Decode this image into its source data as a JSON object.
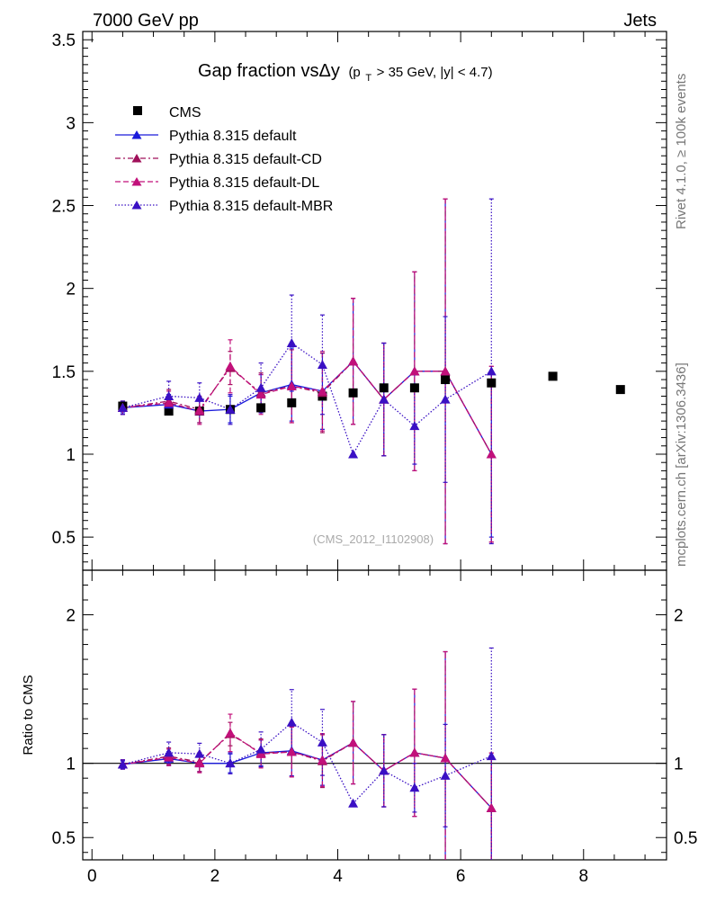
{
  "header": {
    "energy_label": "7000 GeV pp",
    "process_label": "Jets",
    "side_rivet": "Rivet 4.1.0, ≥ 100k events",
    "side_mcplots": "mcplots.cern.ch [arXiv:1306.3436]",
    "analysis_id": "(CMS_2012_I1102908)"
  },
  "chart_data": {
    "type": "scatter",
    "title": "Gap fraction vsΔy",
    "title_cuts": "(p_T > 35 GeV, |y| < 4.7)",
    "title_cuts_pre": "(p",
    "title_cuts_sub": "T",
    "title_cuts_post": " > 35 GeV, |y| < 4.7)",
    "xlabel": "",
    "ylabel": "",
    "ratio_ylabel": "Ratio to CMS",
    "xlim": [
      -0.15,
      9.35
    ],
    "ylim": [
      0.3,
      3.55
    ],
    "ratio_ylim": [
      0.35,
      2.3
    ],
    "x_ticks": [
      0,
      2,
      4,
      6,
      8
    ],
    "y_ticks": [
      0.5,
      1,
      1.5,
      2,
      2.5,
      3,
      3.5
    ],
    "y_tick_labels": [
      "0.5",
      "1",
      "1.5",
      "2",
      "2.5",
      "3",
      "3.5"
    ],
    "ratio_ticks": [
      0.5,
      1,
      2
    ],
    "ratio_tick_labels": [
      "0.5",
      "1",
      "2"
    ],
    "data": {
      "name": "CMS",
      "color": "#000000",
      "x": [
        0.5,
        1.25,
        1.75,
        2.25,
        2.75,
        3.25,
        3.75,
        4.25,
        4.75,
        5.25,
        5.75,
        6.5,
        7.5,
        8.6
      ],
      "y": [
        1.29,
        1.26,
        1.26,
        1.27,
        1.28,
        1.31,
        1.35,
        1.37,
        1.4,
        1.4,
        1.45,
        1.43,
        1.47,
        1.39
      ]
    },
    "series": [
      {
        "name": "Pythia 8.315 default",
        "color": "#1a1adb",
        "dash": "",
        "x": [
          0.5,
          1.25,
          1.75,
          2.25,
          2.75,
          3.25,
          3.75,
          4.25,
          4.75,
          5.25,
          5.75,
          6.5
        ],
        "y": [
          1.28,
          1.3,
          1.26,
          1.27,
          1.37,
          1.42,
          1.38,
          1.56,
          1.33,
          1.5,
          1.5,
          1.0
        ],
        "err": [
          0.03,
          0.06,
          0.07,
          0.08,
          0.11,
          0.22,
          0.23,
          0.38,
          0.34,
          0.6,
          1.04,
          0.5
        ]
      },
      {
        "name": "Pythia 8.315 default-CD",
        "color": "#a0105a",
        "dash": "6,3,2,3",
        "x": [
          0.5,
          1.25,
          1.75,
          2.25,
          2.75,
          3.25,
          3.75,
          4.25,
          4.75,
          5.25,
          5.75,
          6.5
        ],
        "y": [
          1.28,
          1.32,
          1.27,
          1.52,
          1.37,
          1.41,
          1.37,
          1.56,
          1.33,
          1.5,
          1.5,
          1.0
        ],
        "err": [
          0.04,
          0.07,
          0.08,
          0.1,
          0.12,
          0.22,
          0.24,
          0.38,
          0.34,
          0.6,
          1.04,
          0.53
        ]
      },
      {
        "name": "Pythia 8.315 default-DL",
        "color": "#c2107a",
        "dash": "6,3",
        "x": [
          0.5,
          1.25,
          1.75,
          2.25,
          2.75,
          3.25,
          3.75,
          4.25,
          4.75,
          5.25,
          5.75,
          6.5
        ],
        "y": [
          1.28,
          1.31,
          1.26,
          1.53,
          1.36,
          1.41,
          1.38,
          1.56,
          1.33,
          1.5,
          1.5,
          1.0
        ],
        "err": [
          0.04,
          0.07,
          0.08,
          0.16,
          0.12,
          0.22,
          0.24,
          0.38,
          0.34,
          0.6,
          1.04,
          0.53
        ]
      },
      {
        "name": "Pythia 8.315 default-MBR",
        "color": "#3a10c4",
        "dash": "1.5,2",
        "x": [
          0.5,
          1.25,
          1.75,
          2.25,
          2.75,
          3.25,
          3.75,
          4.25,
          4.75,
          5.25,
          5.75,
          6.5
        ],
        "y": [
          1.28,
          1.35,
          1.34,
          1.27,
          1.4,
          1.67,
          1.54,
          1.0,
          1.33,
          1.17,
          1.33,
          1.5
        ],
        "err": [
          0.04,
          0.09,
          0.09,
          0.09,
          0.15,
          0.29,
          0.3,
          0.0,
          0.34,
          0.23,
          0.5,
          1.04
        ]
      }
    ]
  }
}
